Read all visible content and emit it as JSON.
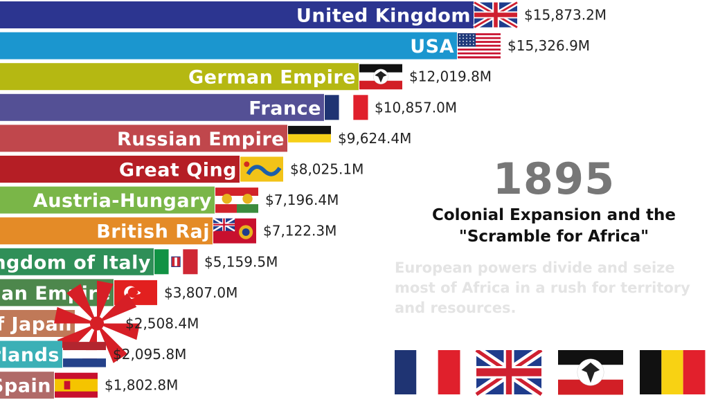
{
  "chart_data": {
    "type": "bar",
    "orientation": "horizontal",
    "value_format": "$#,##0.0M",
    "categories": [
      "United Kingdom",
      "USA",
      "German Empire",
      "France",
      "Russian Empire",
      "Great Qing",
      "Austria-Hungary",
      "British Raj",
      "Kingdom of Italy",
      "Ottoman Empire",
      "Empire of Japan",
      "Netherlands",
      "Spain"
    ],
    "values": [
      15873.2,
      15326.9,
      12019.8,
      10857.0,
      9624.4,
      8025.1,
      7196.4,
      7122.3,
      5159.5,
      3807.0,
      2508.4,
      2095.8,
      1802.8
    ],
    "value_labels": [
      "$15,873.2M",
      "$15,326.9M",
      "$12,019.8M",
      "$10,857.0M",
      "$9,624.4M",
      "$8,025.1M",
      "$7,196.4M",
      "$7,122.3M",
      "$5,159.5M",
      "$3,807.0M",
      "$2,508.4M",
      "$2,095.8M",
      "$1,802.8M"
    ],
    "colors": [
      "#2c3590",
      "#1b96cf",
      "#b5b812",
      "#545095",
      "#c0474c",
      "#b51e25",
      "#7ab648",
      "#e48b27",
      "#2f8f58",
      "#4d874c",
      "#c07958",
      "#3bb0b6",
      "#b06a68"
    ],
    "flags": [
      "uk-flag",
      "usa-flag",
      "german-empire-flag",
      "france-flag",
      "russian-empire-flag",
      "qing-dragon-flag",
      "austria-hungary-flag",
      "british-raj-flag",
      "italy-flag",
      "ottoman-flag",
      "japan-rising-sun-flag",
      "netherlands-flag",
      "spain-flag"
    ],
    "grid": false,
    "legend": "none"
  },
  "annotation": {
    "year": "1895",
    "title_line1": "Colonial Expansion and the",
    "title_line2": "\"Scramble for Africa\"",
    "description": "European powers divide and seize most of Africa in a rush for territory and resources."
  },
  "bottom_flags": [
    "france-flag",
    "uk-flag",
    "german-empire-flag",
    "belgium-flag"
  ]
}
